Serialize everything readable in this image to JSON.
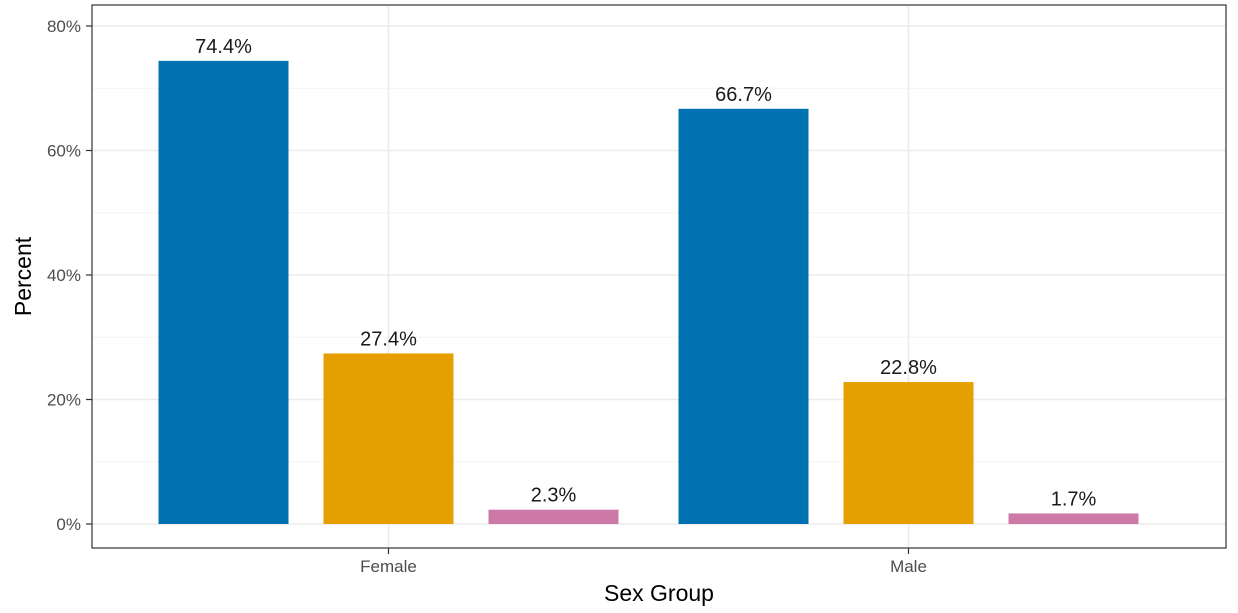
{
  "chart_data": {
    "type": "bar",
    "categories": [
      "Female",
      "Male"
    ],
    "series": [
      {
        "values": [
          74.4,
          66.7
        ],
        "color": "#0072B2"
      },
      {
        "values": [
          27.4,
          22.8
        ],
        "color": "#E69F00"
      },
      {
        "values": [
          2.3,
          1.7
        ],
        "color": "#CC79A7"
      }
    ],
    "data_labels": [
      [
        "74.4%",
        "66.7%"
      ],
      [
        "27.4%",
        "22.8%"
      ],
      [
        "2.3%",
        "1.7%"
      ]
    ],
    "title": "",
    "xlabel": "Sex Group",
    "ylabel": "Percent",
    "ylim": [
      0,
      80
    ],
    "yticks": [
      0,
      20,
      40,
      60,
      80
    ],
    "ytick_labels": [
      "0%",
      "20%",
      "40%",
      "60%",
      "80%"
    ],
    "grid": true,
    "legend": "none"
  }
}
